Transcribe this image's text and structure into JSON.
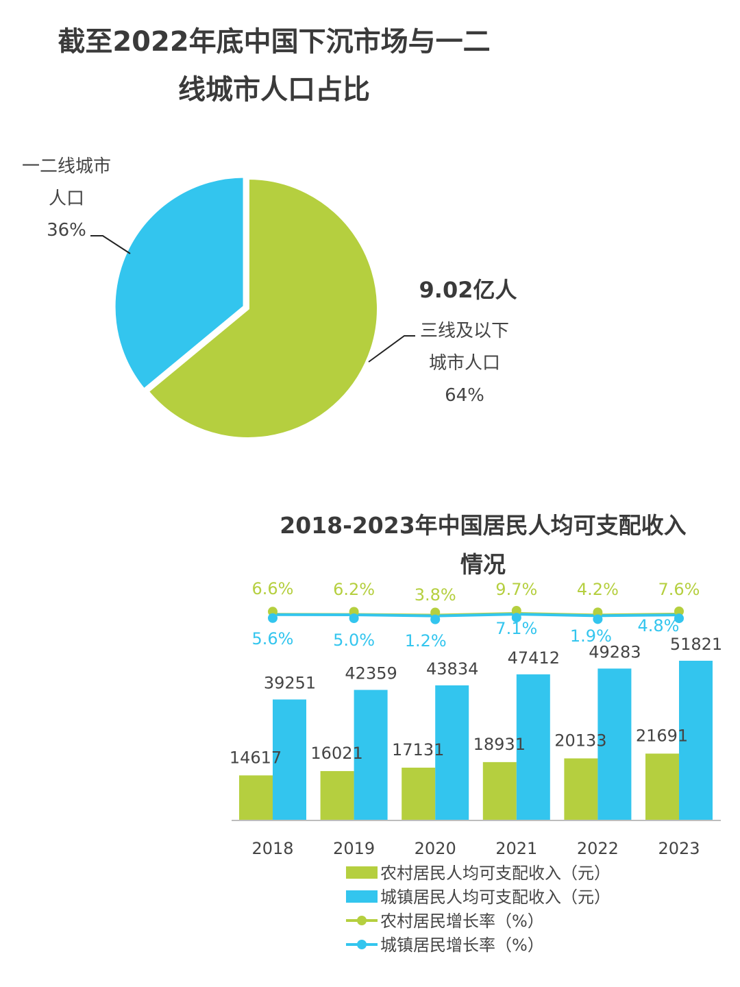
{
  "pie": {
    "title_line1": "截至2022年底中国下沉市场与一二",
    "title_line2": "线城市人口占比",
    "slices": [
      {
        "name": "三线及以下城市人口",
        "label_line1": "三线及以下",
        "label_line2": "城市人口",
        "percent": 64,
        "percent_text": "64%",
        "extra": "9.02亿人",
        "color": "#b5cf3f"
      },
      {
        "name": "一二线城市人口",
        "label_line1": "一二线城市",
        "label_line2": "人口",
        "percent": 36,
        "percent_text": "36%",
        "color": "#33c5ee"
      }
    ]
  },
  "chart_data": [
    {
      "type": "pie",
      "title": "截至2022年底中国下沉市场与一二线城市人口占比",
      "categories": [
        "三线及以下城市人口",
        "一二线城市人口"
      ],
      "values": [
        64,
        36
      ],
      "annotations": [
        "9.02亿人"
      ]
    },
    {
      "type": "bar",
      "title": "2018-2023年中国居民人均可支配收入情况",
      "categories": [
        "2018",
        "2019",
        "2020",
        "2021",
        "2022",
        "2023"
      ],
      "series": [
        {
          "name": "农村居民人均可支配收入（元）",
          "type": "bar",
          "values": [
            14617,
            16021,
            17131,
            18931,
            20133,
            21691
          ],
          "color": "#b5cf3f"
        },
        {
          "name": "城镇居民人均可支配收入（元）",
          "type": "bar",
          "values": [
            39251,
            42359,
            43834,
            47412,
            49283,
            51821
          ],
          "color": "#33c5ee"
        },
        {
          "name": "农村居民增长率（%）",
          "type": "line",
          "values": [
            6.6,
            6.2,
            3.8,
            9.7,
            4.2,
            7.6
          ],
          "labels": [
            "6.6%",
            "6.2%",
            "3.8%",
            "9.7%",
            "4.2%",
            "7.6%"
          ],
          "color": "#b5cf3f"
        },
        {
          "name": "城镇居民增长率（%）",
          "type": "line",
          "values": [
            5.6,
            5.0,
            1.2,
            7.1,
            1.9,
            4.8
          ],
          "labels": [
            "5.6%",
            "5.0%",
            "1.2%",
            "7.1%",
            "1.9%",
            "4.8%"
          ],
          "color": "#33c5ee"
        }
      ],
      "legend": "bottom",
      "grid": false
    }
  ],
  "bar": {
    "title_line1": "2018-2023年中国居民人均可支配收入",
    "title_line2": "情况"
  }
}
